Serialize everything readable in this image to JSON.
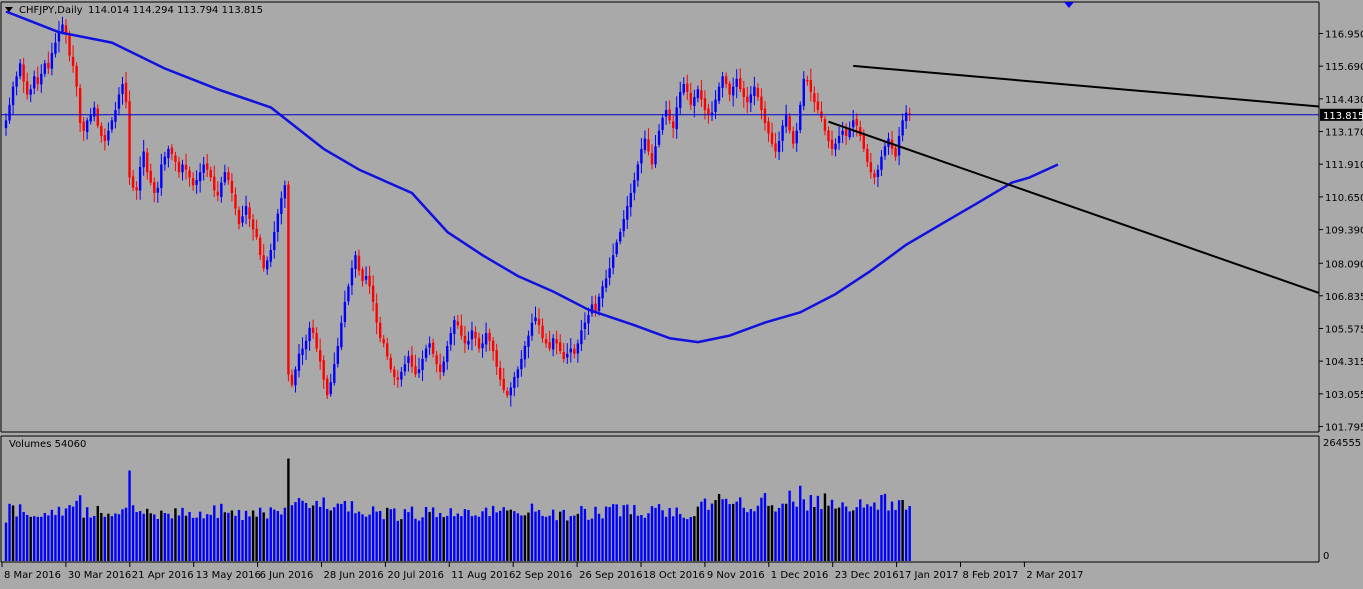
{
  "header": {
    "symbol": "CHFJPY,Daily",
    "ohlc": "114.014 114.294 113.794 113.815"
  },
  "volume_panel": {
    "label": "Volumes 54060",
    "axis_top": "264555",
    "axis_bottom": "0"
  },
  "colors": {
    "background": "#a9a9a9",
    "bull": "#0000ff",
    "bear": "#ff0000",
    "ma": "#1010e0",
    "trend": "#000000",
    "price_line": "#0000cc",
    "axis_text": "#000000"
  },
  "chart_data": [
    {
      "type": "candlestick",
      "symbol": "CHFJPY",
      "timeframe": "Daily",
      "last_price": 113.815,
      "y_ticks": [
        116.95,
        115.69,
        114.43,
        113.17,
        111.91,
        110.65,
        109.39,
        108.09,
        106.835,
        105.575,
        104.315,
        103.055,
        101.795
      ],
      "y_tick_labels": [
        "116.950",
        "115.690",
        "114.430",
        "113.170",
        "111.910",
        "110.650",
        "109.390",
        "108.090",
        "106.835",
        "105.575",
        "104.315",
        "103.055",
        "101.795"
      ],
      "ylim": [
        101.795,
        117.6
      ],
      "x_labels": [
        "8 Mar 2016",
        "30 Mar 2016",
        "21 Apr 2016",
        "13 May 2016",
        "6 Jun 2016",
        "28 Jun 2016",
        "20 Jul 2016",
        "11 Aug 2016",
        "2 Sep 2016",
        "26 Sep 2016",
        "18 Oct 2016",
        "9 Nov 2016",
        "1 Dec 2016",
        "23 Dec 2016",
        "17 Jan 2017",
        "8 Feb 2017",
        "2 Mar 2017"
      ],
      "closes": [
        113.6,
        114.2,
        114.9,
        115.3,
        115.8,
        115.1,
        114.6,
        114.8,
        115.3,
        115.0,
        115.4,
        115.8,
        115.6,
        116.2,
        116.6,
        117.0,
        117.3,
        116.9,
        116.1,
        115.7,
        114.9,
        113.5,
        113.2,
        113.6,
        113.8,
        114.1,
        113.4,
        113.0,
        112.8,
        113.2,
        113.6,
        114.0,
        114.6,
        115.0,
        114.3,
        111.4,
        111.0,
        110.9,
        111.8,
        112.4,
        111.6,
        111.2,
        110.8,
        111.0,
        111.9,
        112.2,
        112.5,
        112.3,
        112.0,
        111.6,
        111.9,
        111.7,
        111.4,
        111.1,
        111.3,
        111.6,
        111.9,
        111.7,
        111.4,
        110.9,
        110.7,
        111.2,
        111.6,
        111.3,
        110.8,
        110.2,
        109.6,
        109.9,
        110.3,
        109.8,
        109.4,
        109.1,
        108.4,
        107.9,
        108.2,
        108.6,
        109.3,
        110.0,
        110.6,
        111.1,
        103.8,
        103.4,
        104.0,
        104.6,
        104.8,
        105.1,
        105.6,
        105.4,
        104.8,
        104.3,
        103.6,
        103.0,
        103.5,
        104.2,
        104.9,
        105.8,
        106.6,
        107.2,
        107.9,
        108.4,
        107.8,
        107.4,
        107.6,
        107.2,
        106.6,
        105.8,
        105.2,
        105.0,
        104.5,
        104.0,
        103.7,
        103.6,
        103.9,
        104.2,
        104.5,
        104.1,
        103.8,
        104.0,
        104.4,
        104.8,
        105.0,
        104.6,
        104.2,
        103.9,
        104.3,
        104.9,
        105.4,
        105.9,
        105.7,
        105.3,
        105.0,
        105.1,
        105.5,
        105.2,
        104.8,
        105.0,
        105.4,
        105.1,
        104.7,
        104.1,
        103.6,
        103.2,
        103.0,
        103.3,
        103.7,
        104.0,
        104.4,
        104.9,
        105.3,
        105.8,
        106.0,
        105.7,
        105.2,
        105.0,
        104.8,
        105.2,
        105.0,
        104.7,
        104.4,
        104.6,
        104.8,
        104.6,
        105.0,
        105.5,
        105.8,
        106.1,
        106.5,
        106.2,
        106.8,
        107.2,
        107.5,
        107.9,
        108.4,
        108.9,
        109.3,
        109.8,
        110.3,
        110.8,
        111.3,
        111.9,
        112.5,
        112.9,
        112.4,
        111.9,
        112.6,
        113.2,
        113.7,
        114.0,
        113.6,
        113.3,
        114.1,
        114.7,
        115.0,
        114.7,
        114.2,
        114.5,
        114.8,
        114.4,
        114.0,
        113.8,
        113.9,
        114.4,
        114.9,
        115.3,
        115.0,
        114.6,
        114.9,
        115.2,
        114.8,
        114.5,
        114.3,
        114.6,
        114.9,
        114.5,
        114.0,
        113.5,
        113.1,
        112.7,
        112.4,
        112.8,
        113.4,
        113.8,
        113.2,
        112.7,
        113.2,
        114.2,
        115.2,
        115.1,
        114.7,
        114.3,
        114.0,
        113.7,
        113.2,
        112.8,
        112.5,
        112.7,
        113.0,
        113.2,
        113.0,
        113.3,
        113.6,
        113.4,
        113.0,
        112.5,
        112.0,
        111.6,
        111.4,
        111.7,
        112.2,
        112.6,
        112.9,
        112.5,
        112.2,
        113.0,
        113.6,
        113.9,
        113.815
      ],
      "ma": [
        [
          0,
          117.8
        ],
        [
          15,
          117.0
        ],
        [
          30,
          116.6
        ],
        [
          45,
          115.6
        ],
        [
          60,
          114.8
        ],
        [
          75,
          114.1
        ],
        [
          90,
          112.5
        ],
        [
          100,
          111.7
        ],
        [
          115,
          110.8
        ],
        [
          125,
          109.3
        ],
        [
          135,
          108.4
        ],
        [
          145,
          107.6
        ],
        [
          155,
          107.0
        ],
        [
          165,
          106.3
        ],
        [
          178,
          105.7
        ],
        [
          188,
          105.2
        ],
        [
          196,
          105.05
        ],
        [
          205,
          105.3
        ],
        [
          215,
          105.8
        ],
        [
          225,
          106.2
        ],
        [
          235,
          106.9
        ],
        [
          245,
          107.8
        ],
        [
          255,
          108.8
        ],
        [
          265,
          109.6
        ],
        [
          275,
          110.4
        ],
        [
          285,
          111.2
        ],
        [
          290,
          111.4
        ],
        [
          298,
          111.9
        ]
      ],
      "trendlines": [
        {
          "name": "upper",
          "start": [
            240,
            115.7
          ],
          "end": [
            375,
            114.1
          ]
        },
        {
          "name": "lower",
          "start": [
            233,
            113.55
          ],
          "end": [
            375,
            106.8
          ]
        }
      ],
      "volume_scale_max": 264555
    }
  ]
}
